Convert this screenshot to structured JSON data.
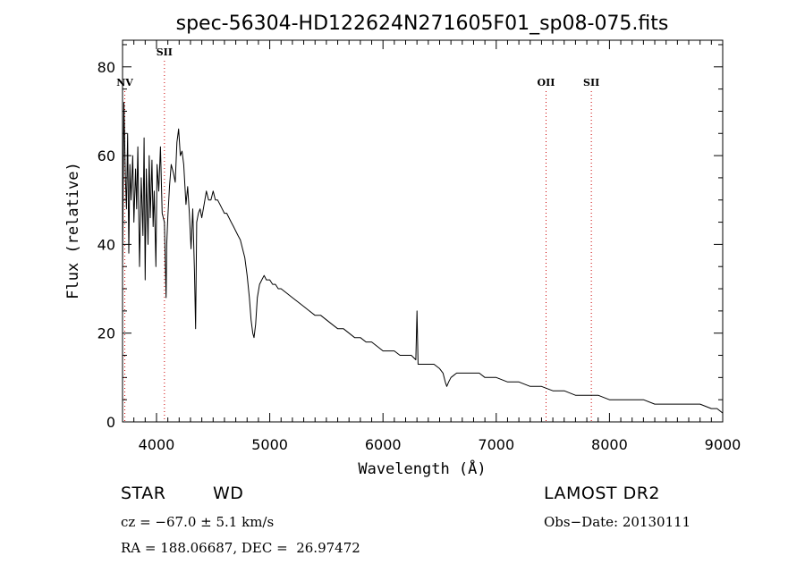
{
  "chart_data": {
    "type": "line",
    "title": "spec-56304-HD122624N271605F01_sp08-075.fits",
    "xlabel": "Wavelength (Å)",
    "ylabel": "Flux (relative)",
    "xlim": [
      3700,
      9000
    ],
    "ylim": [
      0,
      86
    ],
    "x_ticks": [
      4000,
      5000,
      6000,
      7000,
      8000,
      9000
    ],
    "y_ticks": [
      0,
      20,
      40,
      60,
      80
    ],
    "grid": false,
    "line_color": "#000000",
    "marker_color": "#cc0000",
    "series": [
      {
        "x": [
          3700,
          3712,
          3725,
          3735,
          3745,
          3755,
          3765,
          3775,
          3790,
          3800,
          3815,
          3825,
          3835,
          3850,
          3865,
          3880,
          3890,
          3900,
          3910,
          3925,
          3935,
          3945,
          3960,
          3970,
          3980,
          3995,
          4005,
          4020,
          4035,
          4050,
          4070,
          4085,
          4090,
          4100,
          4115,
          4130,
          4150,
          4165,
          4180,
          4195,
          4210,
          4225,
          4240,
          4260,
          4275,
          4290,
          4305,
          4320,
          4335,
          4345,
          4355,
          4370,
          4385,
          4400,
          4420,
          4440,
          4460,
          4480,
          4500,
          4520,
          4540,
          4560,
          4580,
          4600,
          4620,
          4640,
          4660,
          4680,
          4700,
          4720,
          4740,
          4760,
          4780,
          4800,
          4820,
          4835,
          4850,
          4861,
          4875,
          4890,
          4910,
          4930,
          4950,
          4970,
          5000,
          5025,
          5050,
          5075,
          5100,
          5150,
          5200,
          5250,
          5300,
          5350,
          5400,
          5450,
          5500,
          5550,
          5600,
          5650,
          5700,
          5750,
          5800,
          5850,
          5900,
          5950,
          6000,
          6050,
          6100,
          6150,
          6200,
          6250,
          6290,
          6300,
          6310,
          6350,
          6400,
          6450,
          6500,
          6530,
          6550,
          6563,
          6580,
          6600,
          6650,
          6700,
          6750,
          6800,
          6850,
          6900,
          6950,
          7000,
          7100,
          7200,
          7300,
          7400,
          7500,
          7600,
          7700,
          7800,
          7900,
          8000,
          8100,
          8200,
          8300,
          8400,
          8500,
          8600,
          8700,
          8800,
          8900,
          8950,
          9000
        ],
        "y": [
          35,
          72,
          55,
          48,
          65,
          38,
          58,
          50,
          60,
          45,
          57,
          48,
          62,
          35,
          55,
          42,
          64,
          32,
          57,
          40,
          60,
          46,
          59,
          44,
          52,
          35,
          58,
          52,
          62,
          47,
          45,
          28,
          40,
          46,
          53,
          58,
          56,
          54,
          63,
          66,
          60,
          61,
          58,
          49,
          53,
          47,
          39,
          48,
          34,
          21,
          45,
          47,
          48,
          46,
          49,
          52,
          50,
          50,
          52,
          50,
          50,
          49,
          48,
          47,
          47,
          46,
          45,
          44,
          43,
          42,
          41,
          39,
          37,
          33,
          28,
          23,
          20,
          19,
          22,
          28,
          31,
          32,
          33,
          32,
          32,
          31,
          31,
          30,
          30,
          29,
          28,
          27,
          26,
          25,
          24,
          24,
          23,
          22,
          21,
          21,
          20,
          19,
          19,
          18,
          18,
          17,
          16,
          16,
          16,
          15,
          15,
          15,
          14,
          25,
          13,
          13,
          13,
          13,
          12,
          11,
          9,
          8,
          9,
          10,
          11,
          11,
          11,
          11,
          11,
          10,
          10,
          10,
          9,
          9,
          8,
          8,
          7,
          7,
          6,
          6,
          6,
          5,
          5,
          5,
          5,
          4,
          4,
          4,
          4,
          4,
          3,
          3,
          2
        ]
      }
    ],
    "line_markers": [
      {
        "label": "NV",
        "x": 3720,
        "label_row": 2
      },
      {
        "label": "SII",
        "x": 4070,
        "label_row": 1
      },
      {
        "label": "OII",
        "x": 7440,
        "label_row": 2
      },
      {
        "label": "SII",
        "x": 7840,
        "label_row": 3
      }
    ]
  },
  "info": {
    "object_class": "STAR",
    "subclass": "WD",
    "survey": "LAMOST DR2",
    "cz": "cz = −67.0 ± 5.1 km/s",
    "obs_date": "Obs−Date: 20130111",
    "coords": "RA = 188.06687, DEC =  26.97472"
  }
}
